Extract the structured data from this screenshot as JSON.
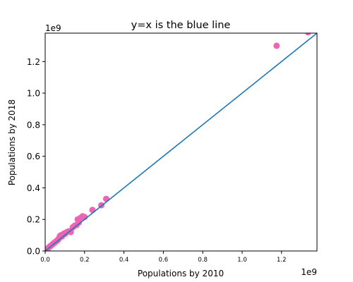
{
  "chart_data": {
    "type": "scatter",
    "title": "y=x is the blue line",
    "xlabel": "Populations by 2010",
    "ylabel": "Populations by 2018",
    "x_offset_label": "1e9",
    "y_offset_label": "1e9",
    "xlim": [
      0,
      1.38
    ],
    "ylim": [
      0,
      1.38
    ],
    "x_ticks": [
      0.0,
      0.2,
      0.4,
      0.6,
      0.8,
      1.0,
      1.2
    ],
    "x_tick_labels": [
      "0.0",
      "0.2",
      "0.4",
      "0.6",
      "0.8",
      "1.0",
      "1.2"
    ],
    "y_ticks": [
      0.0,
      0.2,
      0.4,
      0.6,
      0.8,
      1.0,
      1.2
    ],
    "y_tick_labels": [
      "0.0",
      "0.2",
      "0.4",
      "0.6",
      "0.8",
      "1.0",
      "1.2"
    ],
    "grid": false,
    "reference_line": {
      "x": [
        0,
        1.38
      ],
      "y": [
        0,
        1.38
      ],
      "color": "#1f77b4"
    },
    "point_color": "#f062b4",
    "points": [
      {
        "x": 0.005,
        "y": 0.006
      },
      {
        "x": 0.01,
        "y": 0.012
      },
      {
        "x": 0.015,
        "y": 0.018
      },
      {
        "x": 0.02,
        "y": 0.024
      },
      {
        "x": 0.025,
        "y": 0.03
      },
      {
        "x": 0.03,
        "y": 0.034
      },
      {
        "x": 0.035,
        "y": 0.04
      },
      {
        "x": 0.04,
        "y": 0.046
      },
      {
        "x": 0.045,
        "y": 0.05
      },
      {
        "x": 0.05,
        "y": 0.056
      },
      {
        "x": 0.055,
        "y": 0.06
      },
      {
        "x": 0.06,
        "y": 0.066
      },
      {
        "x": 0.065,
        "y": 0.07
      },
      {
        "x": 0.07,
        "y": 0.08
      },
      {
        "x": 0.075,
        "y": 0.095
      },
      {
        "x": 0.08,
        "y": 0.1
      },
      {
        "x": 0.085,
        "y": 0.092
      },
      {
        "x": 0.09,
        "y": 0.105
      },
      {
        "x": 0.095,
        "y": 0.11
      },
      {
        "x": 0.1,
        "y": 0.108
      },
      {
        "x": 0.105,
        "y": 0.115
      },
      {
        "x": 0.11,
        "y": 0.12
      },
      {
        "x": 0.12,
        "y": 0.125
      },
      {
        "x": 0.13,
        "y": 0.12
      },
      {
        "x": 0.14,
        "y": 0.15
      },
      {
        "x": 0.15,
        "y": 0.16
      },
      {
        "x": 0.16,
        "y": 0.165
      },
      {
        "x": 0.165,
        "y": 0.2
      },
      {
        "x": 0.17,
        "y": 0.18
      },
      {
        "x": 0.18,
        "y": 0.21
      },
      {
        "x": 0.19,
        "y": 0.22
      },
      {
        "x": 0.2,
        "y": 0.215
      },
      {
        "x": 0.24,
        "y": 0.26
      },
      {
        "x": 0.285,
        "y": 0.29
      },
      {
        "x": 0.31,
        "y": 0.33
      },
      {
        "x": 1.175,
        "y": 1.3
      },
      {
        "x": 1.335,
        "y": 1.385
      }
    ]
  }
}
